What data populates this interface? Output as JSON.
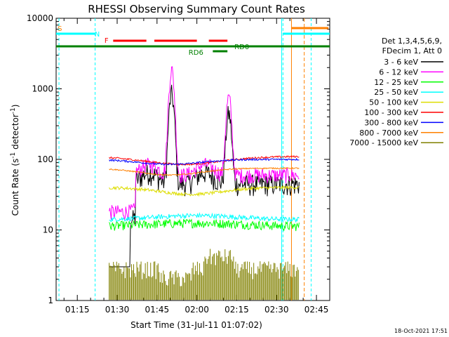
{
  "chart_data": {
    "type": "line",
    "title": "RHESSI Observing Summary Count Rates",
    "xlabel": "Start Time (31-Jul-11 01:07:02)",
    "ylabel_main": "Count Rate (s",
    "ylabel_sup1": "-1",
    "ylabel_mid": " detector",
    "ylabel_sup2": "-1",
    "ylabel_end": ")",
    "yscale": "log",
    "ylim": [
      1,
      10000
    ],
    "xlim_min": [
      67.03,
      170
    ],
    "xtick_values": [
      75,
      90,
      105,
      120,
      135,
      150,
      165
    ],
    "xtick_labels": [
      "01:15",
      "01:30",
      "01:45",
      "02:00",
      "02:15",
      "02:30",
      "02:45"
    ],
    "ytick_values": [
      1,
      10,
      100,
      1000,
      10000
    ],
    "ytick_labels": [
      "1",
      "10",
      "100",
      "1000",
      "10000"
    ],
    "legend_header": [
      "Det 1,3,4,5,6,9,",
      "FDecim 1, Att 0"
    ],
    "series": [
      {
        "name": "3 - 6 keV",
        "color": "#000000"
      },
      {
        "name": "6 - 12 keV",
        "color": "#ff00ff"
      },
      {
        "name": "12 - 25 keV",
        "color": "#00ff00"
      },
      {
        "name": "25 - 50 keV",
        "color": "#00ffff"
      },
      {
        "name": "50 - 100 keV",
        "color": "#dddd00"
      },
      {
        "name": "100 - 300 keV",
        "color": "#ff0000"
      },
      {
        "name": "300 - 800 keV",
        "color": "#0000ff"
      },
      {
        "name": "800 - 7000 keV",
        "color": "#ff8000"
      },
      {
        "name": "7000 - 15000 keV",
        "color": "#808000"
      }
    ],
    "flags": {
      "S": "S",
      "N": "N",
      "F": "F",
      "RD0": "RD0",
      "RD6": "RD6"
    },
    "night_bounds_min": [
      81.5,
      152.0
    ],
    "saa_bounds_min": [
      152.3,
      160.5
    ],
    "data_gap_min": [
      67.03,
      110.0
    ],
    "timestamp": "18-Oct-2021 17:51"
  }
}
